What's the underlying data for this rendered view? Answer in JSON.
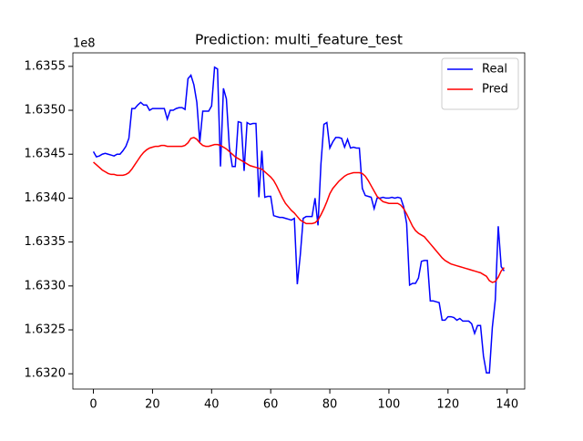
{
  "chart_data": {
    "type": "line",
    "title": "Prediction: multi_feature_test",
    "y_offset_label": "1e8",
    "legend": "upper right",
    "x": [
      0,
      1,
      2,
      3,
      4,
      5,
      6,
      7,
      8,
      9,
      10,
      11,
      12,
      13,
      14,
      15,
      16,
      17,
      18,
      19,
      20,
      21,
      22,
      23,
      24,
      25,
      26,
      27,
      28,
      29,
      30,
      31,
      32,
      33,
      34,
      35,
      36,
      37,
      38,
      39,
      40,
      41,
      42,
      43,
      44,
      45,
      46,
      47,
      48,
      49,
      50,
      51,
      52,
      53,
      54,
      55,
      56,
      57,
      58,
      59,
      60,
      61,
      62,
      63,
      64,
      65,
      66,
      67,
      68,
      69,
      70,
      71,
      72,
      73,
      74,
      75,
      76,
      77,
      78,
      79,
      80,
      81,
      82,
      83,
      84,
      85,
      86,
      87,
      88,
      89,
      90,
      91,
      92,
      93,
      94,
      95,
      96,
      97,
      98,
      99,
      100,
      101,
      102,
      103,
      104,
      105,
      106,
      107,
      108,
      109,
      110,
      111,
      112,
      113,
      114,
      115,
      116,
      117,
      118,
      119,
      120,
      121,
      122,
      123,
      124,
      125,
      126,
      127,
      128,
      129,
      130,
      131,
      132,
      133,
      134,
      135,
      136,
      137,
      138,
      139
    ],
    "series": [
      {
        "name": "Real",
        "color": "#0000ff",
        "values": [
          1.63453,
          1.63447,
          1.63448,
          1.6345,
          1.63451,
          1.6345,
          1.63449,
          1.63448,
          1.6345,
          1.6345,
          1.63454,
          1.63459,
          1.63468,
          1.63502,
          1.63502,
          1.63506,
          1.63509,
          1.63506,
          1.63506,
          1.635,
          1.63502,
          1.63502,
          1.63502,
          1.63502,
          1.63502,
          1.6349,
          1.635,
          1.635,
          1.63502,
          1.63503,
          1.63503,
          1.63501,
          1.63536,
          1.6354,
          1.63529,
          1.63509,
          1.63464,
          1.63499,
          1.63499,
          1.63499,
          1.63505,
          1.63549,
          1.63547,
          1.63436,
          1.63525,
          1.63513,
          1.63458,
          1.63436,
          1.63436,
          1.63487,
          1.63486,
          1.63431,
          1.63486,
          1.63484,
          1.63485,
          1.63485,
          1.63401,
          1.63454,
          1.63401,
          1.63402,
          1.63402,
          1.6338,
          1.63379,
          1.63378,
          1.63378,
          1.63377,
          1.63376,
          1.63375,
          1.63377,
          1.63302,
          1.63335,
          1.63377,
          1.63379,
          1.63379,
          1.63379,
          1.634,
          1.63369,
          1.63439,
          1.63484,
          1.63486,
          1.63457,
          1.63464,
          1.63469,
          1.63469,
          1.63468,
          1.63458,
          1.63467,
          1.63457,
          1.63458,
          1.63457,
          1.63457,
          1.63411,
          1.63403,
          1.63402,
          1.63401,
          1.63388,
          1.634,
          1.634,
          1.63401,
          1.634,
          1.634,
          1.63401,
          1.634,
          1.63401,
          1.634,
          1.6339,
          1.63371,
          1.63301,
          1.63303,
          1.63303,
          1.63309,
          1.63328,
          1.63329,
          1.63329,
          1.63283,
          1.63283,
          1.63282,
          1.63281,
          1.63261,
          1.63261,
          1.63265,
          1.63265,
          1.63264,
          1.63261,
          1.63263,
          1.6326,
          1.6326,
          1.6326,
          1.63257,
          1.63246,
          1.63255,
          1.63255,
          1.6322,
          1.63201,
          1.63201,
          1.63253,
          1.63284,
          1.63368,
          1.63322,
          1.63317
        ]
      },
      {
        "name": "Pred",
        "color": "#ff0000",
        "values": [
          1.63441,
          1.63438,
          1.63435,
          1.63432,
          1.6343,
          1.63428,
          1.63427,
          1.63427,
          1.63426,
          1.63426,
          1.63426,
          1.63427,
          1.63429,
          1.63433,
          1.63438,
          1.63443,
          1.63448,
          1.63452,
          1.63455,
          1.63457,
          1.63458,
          1.63459,
          1.63459,
          1.6346,
          1.6346,
          1.63459,
          1.63459,
          1.63459,
          1.63459,
          1.63459,
          1.63459,
          1.6346,
          1.63463,
          1.63468,
          1.63469,
          1.63467,
          1.63463,
          1.6346,
          1.63459,
          1.63459,
          1.6346,
          1.63461,
          1.63461,
          1.6346,
          1.63458,
          1.63456,
          1.63453,
          1.6345,
          1.63447,
          1.63445,
          1.63443,
          1.63441,
          1.63439,
          1.63437,
          1.63436,
          1.63435,
          1.63434,
          1.63433,
          1.6343,
          1.63427,
          1.63424,
          1.6342,
          1.63414,
          1.63407,
          1.634,
          1.63394,
          1.6339,
          1.63386,
          1.63383,
          1.63379,
          1.63375,
          1.63373,
          1.63371,
          1.63371,
          1.63371,
          1.63372,
          1.63375,
          1.63381,
          1.63388,
          1.63396,
          1.63405,
          1.63411,
          1.63415,
          1.63419,
          1.63422,
          1.63425,
          1.63427,
          1.63428,
          1.63429,
          1.63429,
          1.63429,
          1.63428,
          1.63425,
          1.6342,
          1.63414,
          1.63408,
          1.63402,
          1.63399,
          1.63396,
          1.63395,
          1.63394,
          1.63394,
          1.63394,
          1.63394,
          1.63392,
          1.63388,
          1.63382,
          1.63375,
          1.63368,
          1.63363,
          1.6336,
          1.63358,
          1.63356,
          1.63352,
          1.63348,
          1.63344,
          1.6334,
          1.63336,
          1.63332,
          1.63329,
          1.63327,
          1.63325,
          1.63324,
          1.63323,
          1.63322,
          1.63321,
          1.6332,
          1.63319,
          1.63318,
          1.63317,
          1.63316,
          1.63315,
          1.63313,
          1.63311,
          1.63306,
          1.63304,
          1.63305,
          1.6331,
          1.63317,
          1.63321
        ]
      }
    ],
    "xlim": [
      -6.95,
      145.95
    ],
    "xticks": [
      0,
      20,
      40,
      60,
      80,
      100,
      120,
      140
    ],
    "ylim": [
      1.631826,
      1.635654
    ],
    "yticks": [
      {
        "value": 1.632,
        "label": "1.6320"
      },
      1.6325,
      {
        "value": 1.633,
        "label": "1.6330"
      },
      1.6335,
      {
        "value": 1.634,
        "label": "1.6340"
      },
      1.6345,
      {
        "value": 1.635,
        "label": "1.6350"
      },
      1.6355
    ]
  }
}
